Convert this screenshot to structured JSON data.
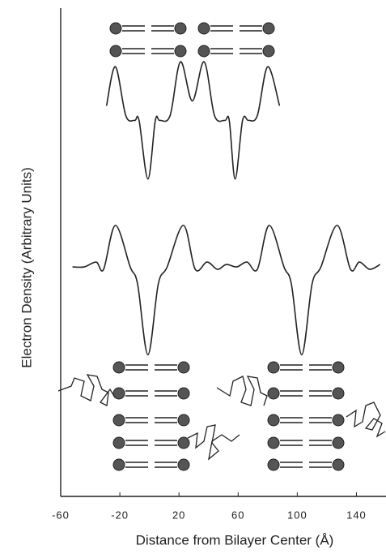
{
  "chart_data": {
    "type": "line",
    "xlabel": "Distance from Bilayer Center  (Å)",
    "ylabel": "Electron Density  (Arbitrary Units)",
    "xlim": [
      -60,
      160
    ],
    "ylim": [
      0,
      100
    ],
    "xticks": [
      -60,
      -20,
      20,
      60,
      100,
      140
    ],
    "series": [
      {
        "color": "#222222",
        "x": [
          -29,
          -23,
          -16,
          -10,
          -7,
          -1,
          4,
          7,
          14,
          21,
          29,
          37,
          44,
          51,
          54,
          58,
          63,
          67,
          73,
          80,
          88
        ],
        "values": [
          80,
          88,
          78,
          77,
          77,
          65,
          77,
          77,
          78,
          89,
          81,
          89,
          78,
          77,
          77,
          65,
          77,
          77,
          78,
          88,
          80
        ]
      },
      {
        "color": "#222222",
        "x": [
          -52,
          -44,
          -36,
          -31,
          -23,
          -13,
          -8,
          -1,
          6,
          12,
          23,
          31,
          39,
          46,
          52,
          59,
          66,
          73,
          81,
          91,
          96,
          103,
          110,
          116,
          127,
          136,
          142,
          149,
          156
        ],
        "values": [
          47,
          47,
          48,
          46.5,
          55.5,
          47,
          43.5,
          29,
          43.5,
          47,
          55.5,
          46.5,
          48,
          46.5,
          47.5,
          47,
          48,
          46.5,
          55.5,
          47,
          43.5,
          29,
          43.5,
          47,
          55.5,
          46.5,
          48,
          46.5,
          47.5
        ]
      }
    ]
  }
}
